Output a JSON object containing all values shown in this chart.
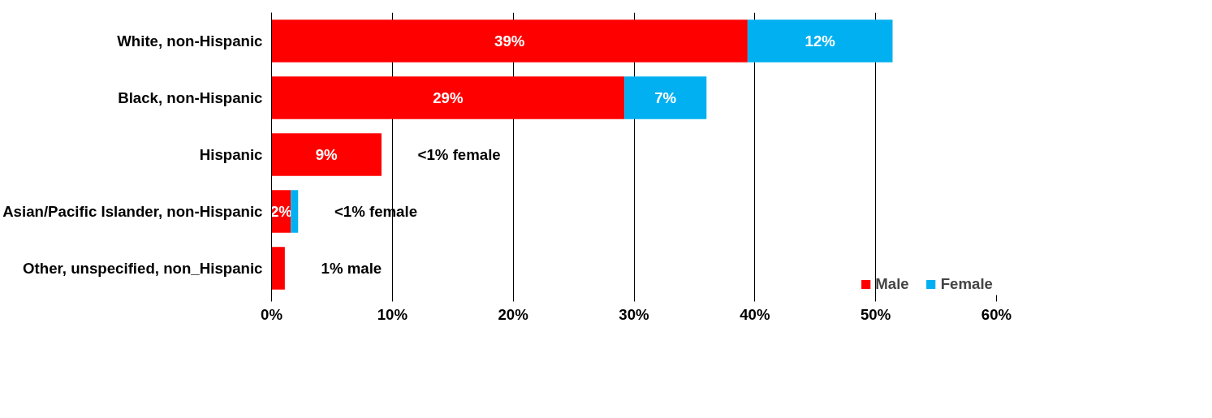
{
  "chart_data": {
    "type": "bar",
    "orientation": "horizontal",
    "stacked": true,
    "categories": [
      "White, non-Hispanic",
      "Black, non-Hispanic",
      "Hispanic",
      "Asian/Pacific Islander, non-Hispanic",
      "Other, unspecified, non_Hispanic"
    ],
    "series": [
      {
        "name": "Male",
        "color": "#ff0000",
        "values": [
          39.4,
          29.2,
          9.1,
          1.6,
          1.1
        ],
        "value_labels": [
          "39%",
          "29%",
          "9%",
          "2%",
          null
        ]
      },
      {
        "name": "Female",
        "color": "#00b0f0",
        "values": [
          12.0,
          6.8,
          null,
          0.6,
          null
        ],
        "value_labels": [
          "12%",
          "7%",
          null,
          null,
          null
        ]
      }
    ],
    "xlim": [
      0,
      60
    ],
    "xticks": [
      {
        "value": 0,
        "label": "0%"
      },
      {
        "value": 10,
        "label": "10%"
      },
      {
        "value": 20,
        "label": "20%"
      },
      {
        "value": 30,
        "label": "30%"
      },
      {
        "value": 40,
        "label": "40%"
      },
      {
        "value": 50,
        "label": "50%"
      },
      {
        "value": 60,
        "label": "60%"
      }
    ],
    "annotations": [
      "<1% female",
      "<1% female",
      "1% male"
    ],
    "grid": "x",
    "legend": "bottom right"
  }
}
